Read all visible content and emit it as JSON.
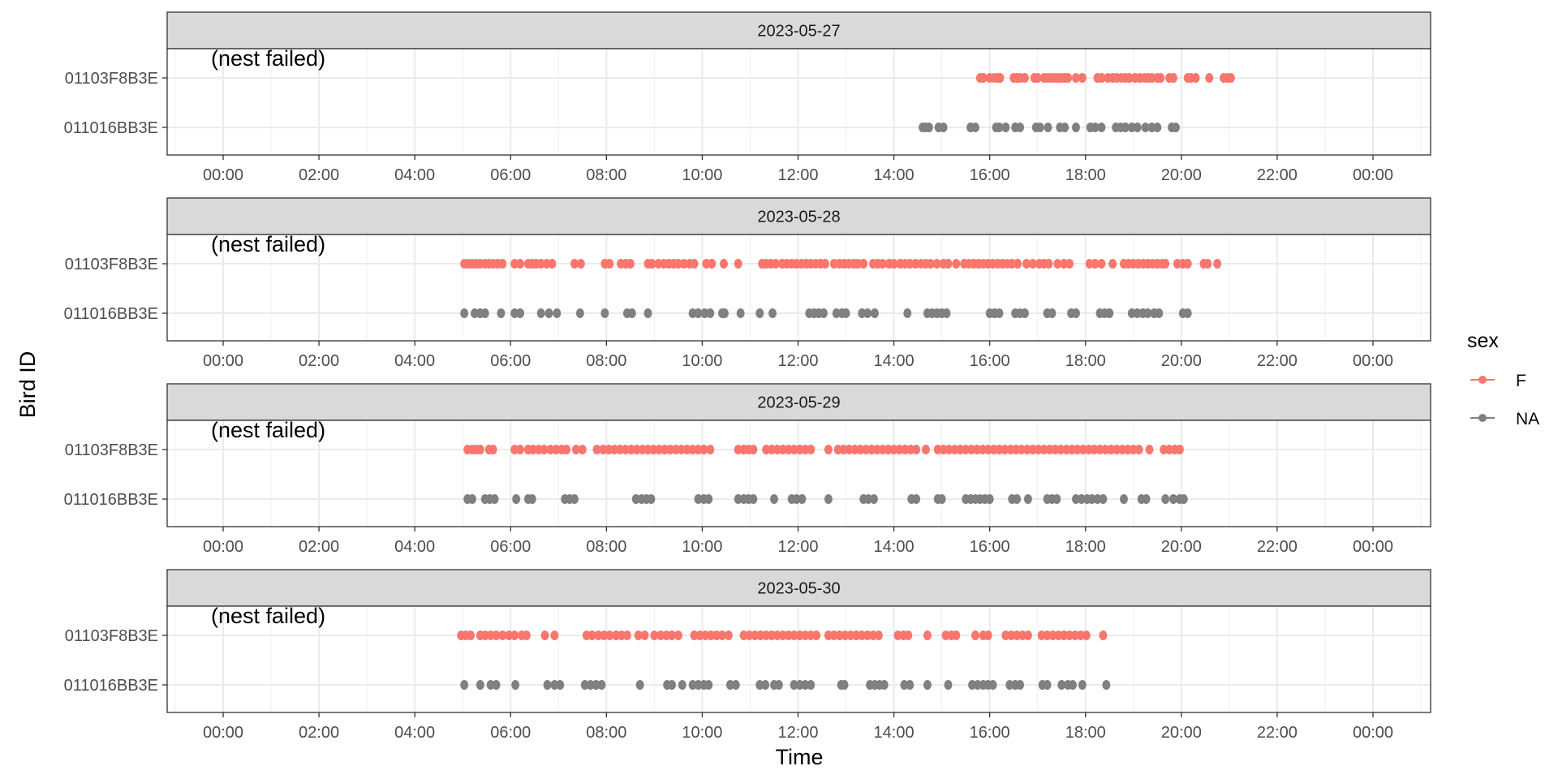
{
  "chart_data": {
    "type": "scatter",
    "xlabel": "Time",
    "ylabel": "Bird ID",
    "x_tick_labels": [
      "00:00",
      "02:00",
      "04:00",
      "06:00",
      "08:00",
      "10:00",
      "12:00",
      "14:00",
      "16:00",
      "18:00",
      "20:00",
      "22:00",
      "00:00"
    ],
    "xlim": [
      "00:00",
      "24:00"
    ],
    "legend": {
      "title": "sex",
      "position": "right",
      "entries": [
        {
          "label": "F",
          "color": "#F8766D"
        },
        {
          "label": "NA",
          "color": "#808080"
        }
      ]
    },
    "grid": true,
    "facets": [
      {
        "date": "2023-05-27",
        "annotation": "(nest failed)",
        "series": [
          {
            "bird": "01103F8B3E",
            "sex": "F",
            "color": "#F8766D",
            "times": [
              "15:48",
              "15:52",
              "16:00",
              "16:06",
              "16:10",
              "16:13",
              "16:30",
              "16:34",
              "16:38",
              "16:44",
              "16:56",
              "17:00",
              "17:08",
              "17:13",
              "17:17",
              "17:22",
              "17:26",
              "17:30",
              "17:34",
              "17:38",
              "17:48",
              "17:56",
              "18:15",
              "18:20",
              "18:28",
              "18:34",
              "18:39",
              "18:45",
              "18:50",
              "18:55",
              "19:02",
              "19:08",
              "19:14",
              "19:18",
              "19:23",
              "19:30",
              "19:34",
              "19:45",
              "19:50",
              "20:08",
              "20:12",
              "20:18",
              "20:35",
              "20:53",
              "20:58",
              "21:02"
            ]
          },
          {
            "bird": "011016BB3E",
            "sex": "NA",
            "color": "#808080",
            "times": [
              "14:36",
              "14:40",
              "14:44",
              "14:56",
              "15:02",
              "15:36",
              "15:42",
              "16:08",
              "16:12",
              "16:20",
              "16:32",
              "16:38",
              "16:58",
              "17:03",
              "17:13",
              "17:28",
              "17:34",
              "17:48",
              "18:06",
              "18:12",
              "18:20",
              "18:38",
              "18:44",
              "18:50",
              "18:58",
              "19:05",
              "19:15",
              "19:23",
              "19:30",
              "19:48",
              "19:53"
            ]
          }
        ]
      },
      {
        "date": "2023-05-28",
        "annotation": "(nest failed)",
        "series": [
          {
            "bird": "01103F8B3E",
            "sex": "F",
            "color": "#F8766D",
            "times": [
              "05:02",
              "05:07",
              "05:12",
              "05:17",
              "05:22",
              "05:28",
              "05:33",
              "05:38",
              "05:44",
              "05:50",
              "06:05",
              "06:12",
              "06:22",
              "06:27",
              "06:32",
              "06:38",
              "06:45",
              "06:52",
              "07:20",
              "07:28",
              "07:58",
              "08:04",
              "08:18",
              "08:24",
              "08:30",
              "08:52",
              "08:57",
              "09:05",
              "09:12",
              "09:18",
              "09:24",
              "09:30",
              "09:37",
              "09:44",
              "09:50",
              "10:05",
              "10:12",
              "10:27",
              "10:45",
              "11:15",
              "11:20",
              "11:26",
              "11:32",
              "11:40",
              "11:46",
              "11:52",
              "11:58",
              "12:04",
              "12:10",
              "12:16",
              "12:22",
              "12:28",
              "12:34",
              "12:45",
              "12:52",
              "12:58",
              "13:04",
              "13:10",
              "13:15",
              "13:22",
              "13:34",
              "13:40",
              "13:46",
              "13:54",
              "14:00",
              "14:08",
              "14:14",
              "14:20",
              "14:27",
              "14:34",
              "14:40",
              "14:46",
              "14:54",
              "15:02",
              "15:08",
              "15:18",
              "15:28",
              "15:34",
              "15:40",
              "15:46",
              "15:52",
              "15:58",
              "16:04",
              "16:10",
              "16:16",
              "16:22",
              "16:28",
              "16:35",
              "16:46",
              "16:54",
              "17:02",
              "17:08",
              "17:14",
              "17:25",
              "17:33",
              "17:40",
              "18:05",
              "18:12",
              "18:20",
              "18:34",
              "18:48",
              "18:54",
              "19:00",
              "19:06",
              "19:12",
              "19:18",
              "19:24",
              "19:30",
              "19:36",
              "19:40",
              "19:55",
              "20:02",
              "20:08",
              "20:28",
              "20:33",
              "20:45"
            ]
          },
          {
            "bird": "011016BB3E",
            "sex": "NA",
            "color": "#808080",
            "times": [
              "05:02",
              "05:15",
              "05:22",
              "05:28",
              "05:48",
              "06:05",
              "06:12",
              "06:38",
              "06:48",
              "06:58",
              "07:27",
              "07:58",
              "08:26",
              "08:32",
              "08:52",
              "09:48",
              "09:55",
              "10:03",
              "10:10",
              "10:25",
              "10:28",
              "10:48",
              "11:12",
              "11:28",
              "12:14",
              "12:20",
              "12:26",
              "12:32",
              "12:48",
              "12:55",
              "13:00",
              "13:20",
              "13:27",
              "13:36",
              "14:17",
              "14:42",
              "14:48",
              "14:54",
              "15:00",
              "15:06",
              "16:00",
              "16:06",
              "16:12",
              "16:32",
              "16:38",
              "16:44",
              "17:12",
              "17:18",
              "17:42",
              "17:48",
              "18:18",
              "18:24",
              "18:30",
              "18:58",
              "19:05",
              "19:12",
              "19:18",
              "19:26",
              "19:32",
              "20:02",
              "20:08"
            ]
          }
        ]
      },
      {
        "date": "2023-05-29",
        "annotation": "(nest failed)",
        "series": [
          {
            "bird": "01103F8B3E",
            "sex": "F",
            "color": "#F8766D",
            "times": [
              "05:06",
              "05:12",
              "05:17",
              "05:22",
              "05:33",
              "05:38",
              "06:05",
              "06:12",
              "06:22",
              "06:28",
              "06:35",
              "06:42",
              "06:50",
              "06:57",
              "07:04",
              "07:10",
              "07:22",
              "07:30",
              "07:48",
              "07:56",
              "08:03",
              "08:10",
              "08:17",
              "08:24",
              "08:31",
              "08:38",
              "08:45",
              "08:52",
              "08:59",
              "09:06",
              "09:13",
              "09:20",
              "09:27",
              "09:34",
              "09:41",
              "09:48",
              "09:55",
              "10:02",
              "10:10",
              "10:45",
              "10:52",
              "10:58",
              "11:04",
              "11:20",
              "11:27",
              "11:34",
              "11:41",
              "11:48",
              "11:55",
              "12:02",
              "12:09",
              "12:16",
              "12:38",
              "12:50",
              "12:57",
              "13:04",
              "13:11",
              "13:18",
              "13:25",
              "13:32",
              "13:39",
              "13:46",
              "13:53",
              "14:00",
              "14:07",
              "14:14",
              "14:21",
              "14:28",
              "14:40",
              "14:55",
              "15:02",
              "15:09",
              "15:16",
              "15:23",
              "15:30",
              "15:37",
              "15:44",
              "15:51",
              "15:58",
              "16:05",
              "16:12",
              "16:19",
              "16:26",
              "16:33",
              "16:40",
              "16:47",
              "16:54",
              "17:01",
              "17:08",
              "17:15",
              "17:22",
              "17:29",
              "17:36",
              "17:43",
              "17:50",
              "17:57",
              "18:04",
              "18:11",
              "18:18",
              "18:25",
              "18:32",
              "18:39",
              "18:46",
              "18:53",
              "19:00",
              "19:07",
              "19:20",
              "19:38",
              "19:45",
              "19:52",
              "19:58"
            ]
          },
          {
            "bird": "011016BB3E",
            "sex": "NA",
            "color": "#808080",
            "times": [
              "05:06",
              "05:12",
              "05:28",
              "05:34",
              "05:40",
              "06:07",
              "06:22",
              "06:27",
              "07:08",
              "07:14",
              "07:20",
              "08:37",
              "08:44",
              "08:50",
              "08:56",
              "09:55",
              "10:02",
              "10:08",
              "10:45",
              "10:52",
              "10:58",
              "11:04",
              "11:30",
              "11:52",
              "11:58",
              "12:05",
              "12:38",
              "13:22",
              "13:28",
              "13:35",
              "14:22",
              "14:28",
              "14:55",
              "15:00",
              "15:30",
              "15:36",
              "15:42",
              "15:48",
              "15:54",
              "16:00",
              "16:28",
              "16:34",
              "16:48",
              "17:12",
              "17:18",
              "17:24",
              "17:48",
              "17:55",
              "18:02",
              "18:08",
              "18:15",
              "18:22",
              "18:48",
              "19:10",
              "19:16",
              "19:40",
              "19:50",
              "19:58",
              "20:03"
            ]
          }
        ]
      },
      {
        "date": "2023-05-30",
        "annotation": "(nest failed)",
        "series": [
          {
            "bird": "01103F8B3E",
            "sex": "F",
            "color": "#F8766D",
            "times": [
              "04:58",
              "05:04",
              "05:10",
              "05:22",
              "05:28",
              "05:35",
              "05:42",
              "05:50",
              "05:58",
              "06:05",
              "06:14",
              "06:20",
              "06:43",
              "06:55",
              "07:35",
              "07:42",
              "07:50",
              "07:57",
              "08:04",
              "08:12",
              "08:19",
              "08:26",
              "08:40",
              "08:48",
              "09:00",
              "09:08",
              "09:15",
              "09:22",
              "09:30",
              "09:50",
              "09:57",
              "10:04",
              "10:11",
              "10:18",
              "10:25",
              "10:33",
              "10:52",
              "10:59",
              "11:06",
              "11:13",
              "11:20",
              "11:27",
              "11:34",
              "11:41",
              "11:48",
              "11:55",
              "12:02",
              "12:09",
              "12:16",
              "12:23",
              "12:38",
              "12:45",
              "12:52",
              "12:59",
              "13:06",
              "13:13",
              "13:20",
              "13:27",
              "13:34",
              "13:41",
              "14:05",
              "14:12",
              "14:18",
              "14:42",
              "15:05",
              "15:12",
              "15:18",
              "15:42",
              "15:52",
              "15:58",
              "16:20",
              "16:27",
              "16:34",
              "16:41",
              "16:48",
              "17:05",
              "17:12",
              "17:19",
              "17:26",
              "17:33",
              "17:40",
              "17:47",
              "17:54",
              "18:01",
              "18:22"
            ]
          },
          {
            "bird": "011016BB3E",
            "sex": "NA",
            "color": "#808080",
            "times": [
              "05:02",
              "05:22",
              "05:35",
              "05:42",
              "06:06",
              "06:46",
              "06:55",
              "07:02",
              "07:33",
              "07:40",
              "07:47",
              "07:54",
              "08:42",
              "09:16",
              "09:22",
              "09:35",
              "09:48",
              "09:55",
              "10:02",
              "10:08",
              "10:35",
              "10:42",
              "11:12",
              "11:19",
              "11:30",
              "11:36",
              "11:55",
              "12:02",
              "12:09",
              "12:16",
              "12:54",
              "12:58",
              "13:30",
              "13:36",
              "13:42",
              "13:48",
              "14:13",
              "14:20",
              "14:42",
              "15:08",
              "15:38",
              "15:45",
              "15:52",
              "15:58",
              "16:04",
              "16:25",
              "16:32",
              "16:38",
              "17:06",
              "17:12",
              "17:30",
              "17:38",
              "17:44",
              "17:56",
              "18:26"
            ]
          }
        ]
      }
    ]
  }
}
